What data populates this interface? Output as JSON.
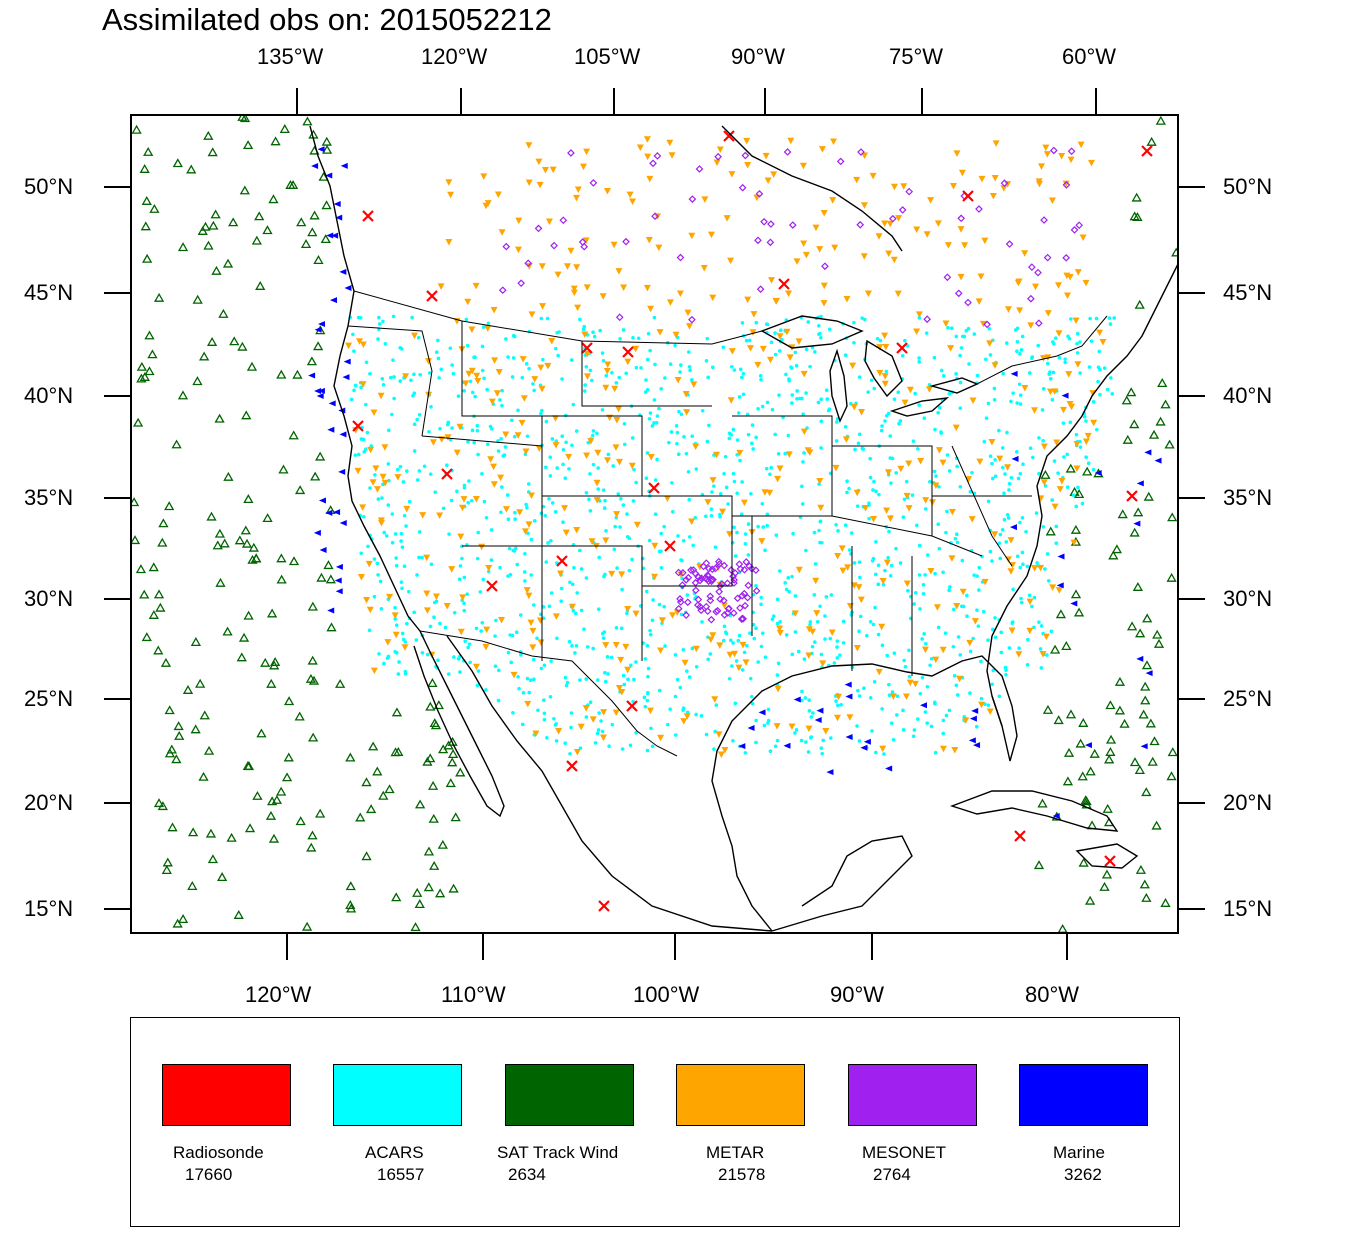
{
  "title": "Assimilated obs on: 2015052212",
  "map": {
    "top_longitude_labels": [
      "135°W",
      "120°W",
      "105°W",
      "90°W",
      "75°W",
      "60°W"
    ],
    "bottom_longitude_labels": [
      "120°W",
      "110°W",
      "100°W",
      "90°W",
      "80°W"
    ],
    "left_latitude_labels": [
      "50°N",
      "45°N",
      "40°N",
      "35°N",
      "30°N",
      "25°N",
      "20°N",
      "15°N"
    ],
    "right_latitude_labels": [
      "50°N",
      "45°N",
      "40°N",
      "35°N",
      "30°N",
      "25°N",
      "20°N",
      "15°N"
    ]
  },
  "legend": {
    "items": [
      {
        "label": "Radiosonde",
        "count": "17660",
        "color": "#ff0000",
        "marker": "x-mark"
      },
      {
        "label": "ACARS",
        "count": "16557",
        "color": "#00ffff",
        "marker": "dot"
      },
      {
        "label": "SAT Track Wind",
        "count": "2634",
        "color": "#006400",
        "marker": "open-triangle"
      },
      {
        "label": "METAR",
        "count": "21578",
        "color": "#ffa500",
        "marker": "down-triangle"
      },
      {
        "label": "MESONET",
        "count": "2764",
        "color": "#a020f0",
        "marker": "diamond"
      },
      {
        "label": "Marine",
        "count": "3262",
        "color": "#0000ff",
        "marker": "left-triangle"
      }
    ]
  }
}
